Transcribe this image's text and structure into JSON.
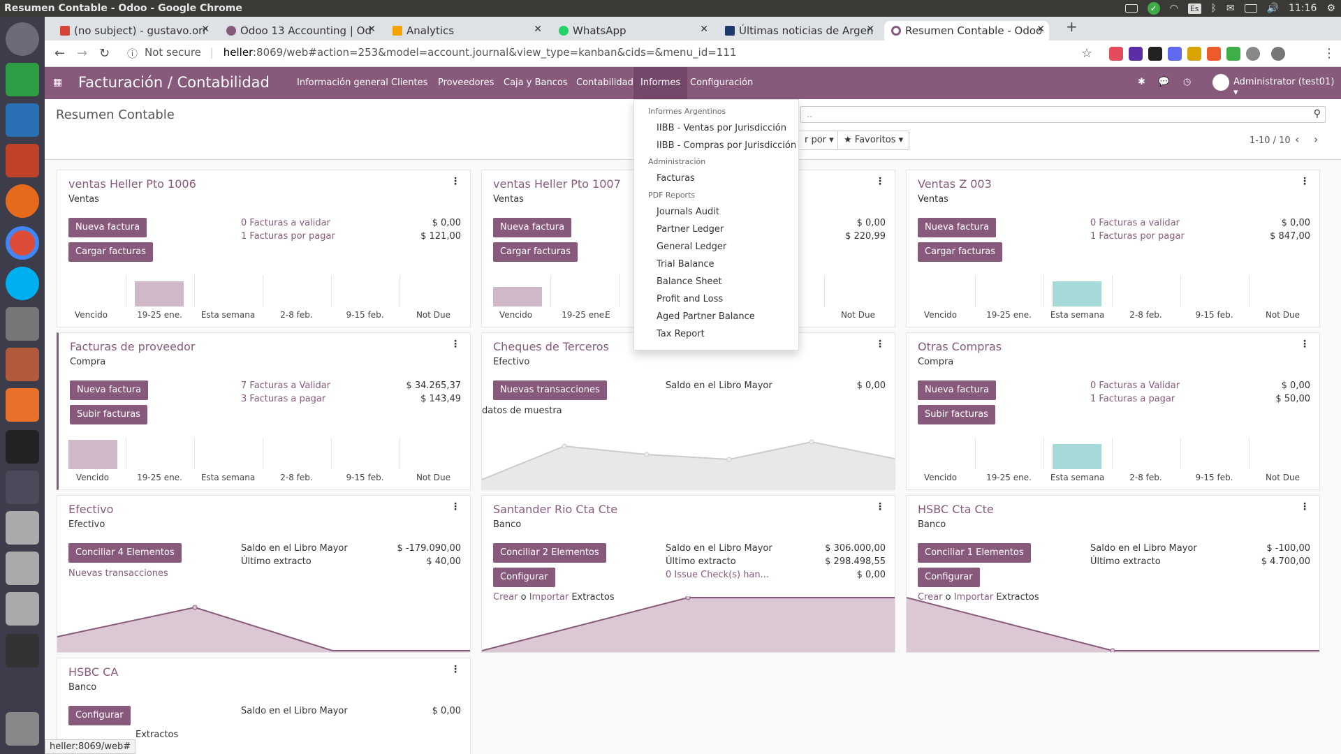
{
  "os": {
    "window_title": "Resumen Contable - Odoo - Google Chrome",
    "time": "11:16",
    "lang": "Es"
  },
  "browser": {
    "tabs": [
      {
        "label": "(no subject) - gustavo.orr"
      },
      {
        "label": "Odoo 13 Accounting | Od"
      },
      {
        "label": "Analytics"
      },
      {
        "label": "WhatsApp"
      },
      {
        "label": "Últimas noticias de Argen"
      },
      {
        "label": "Resumen Contable - Odoo"
      }
    ],
    "not_secure": "Not secure",
    "url_host": "heller",
    "url_rest": ":8069/web#action=253&model=account.journal&view_type=kanban&cids=&menu_id=111",
    "status_url": "heller:8069/web#"
  },
  "nav": {
    "brand": "Facturación / Contabilidad",
    "menus": [
      "Información general",
      "Clientes",
      "Proveedores",
      "Caja y Bancos",
      "Contabilidad",
      "Informes",
      "Configuración"
    ],
    "user": "Administrator (test01)"
  },
  "control_panel": {
    "title": "Resumen Contable",
    "search_placeholder": "..",
    "group_by": "r por",
    "favorites": "Favoritos",
    "pager": "1-10 / 10"
  },
  "dropdown": {
    "sections": [
      {
        "header": "Informes Argentinos",
        "items": [
          "IIBB - Ventas por Jurisdicción",
          "IIBB - Compras por Jurisdicción"
        ]
      },
      {
        "header": "Administración",
        "items": [
          "Facturas"
        ]
      },
      {
        "header": "PDF Reports",
        "items": [
          "Journals Audit",
          "Partner Ledger",
          "General Ledger",
          "Trial Balance",
          "Balance Sheet",
          "Profit and Loss",
          "Aged Partner Balance",
          "Tax Report"
        ]
      }
    ]
  },
  "bar_labels": [
    "Vencido",
    "19-25 ene.",
    "Esta semana",
    "2-8 feb.",
    "9-15 feb.",
    "Not Due"
  ],
  "colors": {
    "primary": "#875a7b",
    "bar_past": "#cfb9c9",
    "bar_current": "#a6dad8",
    "nav": "#875a7b"
  },
  "cards": {
    "c1": {
      "title": "ventas Heller Pto 1006",
      "type": "Ventas",
      "btn1": "Nueva factura",
      "btn2": "Cargar facturas",
      "l1": "0 Facturas a validar",
      "l2": "1 Facturas por pagar",
      "a1": "$ 0,00",
      "a2": "$ 121,00"
    },
    "c2": {
      "title": "ventas Heller Pto 1007",
      "type": "Ventas",
      "btn1": "Nueva factura",
      "btn2": "Cargar facturas",
      "a1": "$ 0,00",
      "a2": "$ 220,99",
      "partial_label_a": "E",
      "partial_label_b": "b."
    },
    "c3": {
      "title": "Ventas Z 003",
      "type": "Ventas",
      "btn1": "Nueva factura",
      "btn2": "Cargar facturas",
      "l1": "0 Facturas a validar",
      "l2": "1 Facturas por pagar",
      "a1": "$ 0,00",
      "a2": "$ 847,00"
    },
    "c4": {
      "title": "Facturas de proveedor",
      "type": "Compra",
      "btn1": "Nueva factura",
      "btn2": "Subir facturas",
      "l1": "7 Facturas a Validar",
      "l2": "3 Facturas a pagar",
      "a1": "$ 34.265,37",
      "a2": "$ 143,49"
    },
    "c5": {
      "title": "Cheques de Terceros",
      "type": "Efectivo",
      "btn1": "Nuevas transacciones",
      "t1": "Saldo en el Libro Mayor",
      "a1": "$ 0,00",
      "sample": "datos de muestra"
    },
    "c6": {
      "title": "Otras Compras",
      "type": "Compra",
      "btn1": "Nueva factura",
      "btn2": "Subir facturas",
      "l1": "0 Facturas a Validar",
      "l2": "1 Facturas a pagar",
      "a1": "$ 0,00",
      "a2": "$ 50,00"
    },
    "c7": {
      "title": "Efectivo",
      "type": "Efectivo",
      "btn1": "Conciliar 4 Elementos",
      "t1": "Saldo en el Libro Mayor",
      "t2": "Último extracto",
      "a1": "$ -179.090,00",
      "a2": "$ 40,00",
      "l1": "Nuevas transacciones"
    },
    "c8": {
      "title": "Santander Rio Cta Cte",
      "type": "Banco",
      "btn1": "Conciliar 2 Elementos",
      "btn2": "Configurar",
      "t1": "Saldo en el Libro Mayor",
      "t2": "Último extracto",
      "l3": "0 Issue Check(s) han...",
      "a1": "$ 306.000,00",
      "a2": "$ 298.498,55",
      "a3": "$ 0,00",
      "crear": "Crear",
      "o": "o",
      "importar": "Importar",
      "extractos": "Extractos"
    },
    "c9": {
      "title": "HSBC Cta Cte",
      "type": "Banco",
      "btn1": "Conciliar 1 Elementos",
      "btn2": "Configurar",
      "t1": "Saldo en el Libro Mayor",
      "t2": "Último extracto",
      "a1": "$ -100,00",
      "a2": "$ 4.700,00",
      "crear": "Crear",
      "o": "o",
      "importar": "Importar",
      "extractos": "Extractos"
    },
    "c10": {
      "title": "HSBC CA",
      "type": "Banco",
      "btn1": "Configurar",
      "t1": "Saldo en el Libro Mayor",
      "a1": "$ 0,00",
      "extractos": "Extractos"
    }
  }
}
